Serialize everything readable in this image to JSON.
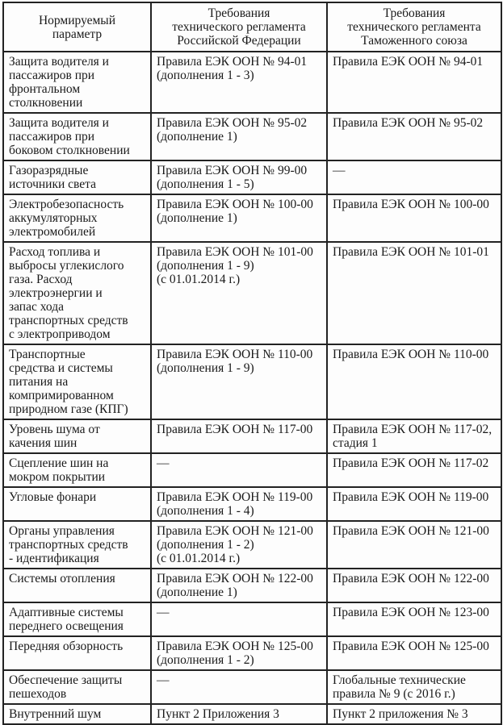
{
  "colors": {
    "background": "#fdfdfd",
    "text": "#1a1a1a",
    "border": "#222222"
  },
  "table": {
    "headers": {
      "param": "Нормируемый\nпараметр",
      "rf": "Требования\nтехнического регламента\nРоссийской Федерации",
      "cu": "Требования\nтехнического регламента\nТаможенного союза"
    },
    "rows": [
      {
        "param": "Защита водителя и\nпассажиров при\nфронтальном\nстолкновении",
        "rf": "Правила ЕЭК ООН № 94-01\n(дополнения 1 - 3)",
        "cu": "Правила ЕЭК ООН № 94-01"
      },
      {
        "param": "Защита водителя и\nпассажиров при\nбоковом столкновении",
        "rf": "Правила ЕЭК ООН № 95-02\n(дополнение 1)",
        "cu": "Правила ЕЭК ООН № 95-02"
      },
      {
        "param": "Газоразрядные\nисточники света",
        "rf": "Правила ЕЭК ООН № 99-00\n(дополнения 1 - 5)",
        "cu": "—"
      },
      {
        "param": "Электробезопасность\nаккумуляторных\nэлектромобилей",
        "rf": "Правила ЕЭК ООН № 100-00\n(дополнение 1)",
        "cu": "Правила ЕЭК ООН № 100-00"
      },
      {
        "param": "Расход топлива и\nвыбросы углекислого\nгаза. Расход\nэлектроэнергии и\nзапас хода\nтранспортных средств\nс электроприводом",
        "rf": "Правила ЕЭК ООН № 101-00\n(дополнения 1 - 9)\n(с 01.01.2014 г.)",
        "cu": "Правила ЕЭК ООН № 101-01"
      },
      {
        "param": "Транспортные\nсредства и системы\nпитания на\nкомпримированном\nприродном газе (КПГ)",
        "rf": "Правила ЕЭК ООН № 110-00\n(дополнения 1 - 9)",
        "cu": "Правила ЕЭК ООН № 110-00"
      },
      {
        "param": "Уровень шума от\nкачения шин",
        "rf": "Правила ЕЭК ООН № 117-00",
        "cu": "Правила ЕЭК ООН № 117-02,\nстадия 1"
      },
      {
        "param": "Сцепление шин на\nмокром покрытии",
        "rf": "—",
        "cu": "Правила ЕЭК ООН № 117-02"
      },
      {
        "param": "Угловые фонари",
        "rf": "Правила ЕЭК ООН № 119-00\n(дополнения 1 - 4)",
        "cu": "Правила ЕЭК ООН № 119-00"
      },
      {
        "param": "Органы управления\nтранспортных средств\n- идентификация",
        "rf": "Правила ЕЭК ООН № 121-00\n(дополнения 1 - 2)\n(с 01.01.2014 г.)",
        "cu": "Правила ЕЭК ООН № 121-00"
      },
      {
        "param": "Системы отопления",
        "rf": "Правила ЕЭК ООН № 122-00\n(дополнение 1)",
        "cu": "Правила ЕЭК ООН № 122-00"
      },
      {
        "param": "Адаптивные системы\nпереднего освещения",
        "rf": "—",
        "cu": "Правила ЕЭК ООН № 123-00"
      },
      {
        "param": "Передняя обзорность",
        "rf": "Правила ЕЭК ООН № 125-00\n(дополнения 1 - 2)",
        "cu": "Правила ЕЭК ООН № 125-00"
      },
      {
        "param": "Обеспечение защиты\nпешеходов",
        "rf": "—",
        "cu": "Глобальные технические\nправила № 9 (с 2016 г.)"
      },
      {
        "param": "Внутренний шум",
        "rf": "Пункт 2 Приложения 3",
        "cu": "Пункт 2 приложения № 3"
      }
    ]
  }
}
